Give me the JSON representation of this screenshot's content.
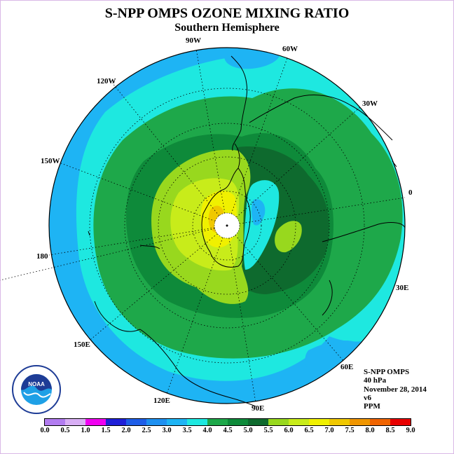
{
  "title": "S-NPP OMPS OZONE MIXING RATIO",
  "subtitle": "Southern Hemisphere",
  "longitude_labels": [
    "90W",
    "60W",
    "30W",
    "0",
    "30E",
    "60E",
    "90E",
    "120E",
    "150E",
    "180",
    "150W",
    "120W"
  ],
  "info": {
    "instrument": "S-NPP OMPS",
    "level": "40 hPa",
    "date": "November 28, 2014",
    "version": "v6",
    "units": "PPM"
  },
  "logo": {
    "text": "NOAA"
  },
  "colorbar": {
    "ticks": [
      "0.0",
      "0.5",
      "1.0",
      "1.5",
      "2.0",
      "2.5",
      "3.0",
      "3.5",
      "4.0",
      "4.5",
      "5.0",
      "5.5",
      "6.0",
      "6.5",
      "7.0",
      "7.5",
      "8.0",
      "8.5",
      "9.0"
    ],
    "colors": [
      "#b27cf0",
      "#d8aef4",
      "#f000f0",
      "#2020d8",
      "#1e5ee8",
      "#1e90f0",
      "#1eb4f4",
      "#1ee8e0",
      "#1ea84a",
      "#0e8a3a",
      "#0e6a2e",
      "#98d81e",
      "#c8ec1a",
      "#f0f000",
      "#f0c800",
      "#f09600",
      "#f06400",
      "#e80000",
      "#8c5a3c"
    ]
  }
}
